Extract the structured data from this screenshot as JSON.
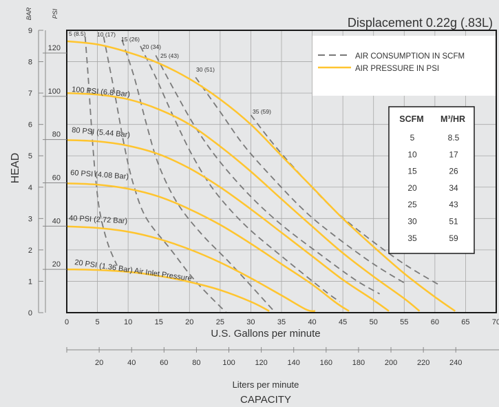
{
  "chart_data": {
    "type": "line",
    "title": "Displacement 0.22g (.83L)",
    "xlabel": "U.S. Gallons per minute",
    "xlabel2": "Liters per minute",
    "xlabel3": "CAPACITY",
    "ylabel": "HEAD",
    "unit_bar": "BAR",
    "unit_psi": "PSI",
    "xlim": [
      0,
      70
    ],
    "ylim_bar": [
      0,
      9
    ],
    "x_ticks": [
      "0",
      "5",
      "10",
      "15",
      "20",
      "25",
      "30",
      "35",
      "40",
      "45",
      "50",
      "55",
      "60",
      "65",
      "70"
    ],
    "bar_ticks": [
      "0",
      "1",
      "2",
      "3",
      "4",
      "5",
      "6",
      "7",
      "8",
      "9"
    ],
    "psi_ticks": [
      "20",
      "40",
      "60",
      "80",
      "100",
      "120"
    ],
    "lpm_ticks": [
      "20",
      "40",
      "60",
      "80",
      "100",
      "120",
      "140",
      "160",
      "180",
      "200",
      "220",
      "240"
    ],
    "legend": {
      "dashed": "AIR CONSUMPTION IN SCFM",
      "solid": "AIR PRESSURE IN PSI",
      "position": "top-right"
    },
    "pressure_series": [
      {
        "name": "20 PSI (1.36 Bar) Air Inlet Pressure",
        "points": [
          [
            0,
            1.38
          ],
          [
            5,
            1.36
          ],
          [
            10,
            1.3
          ],
          [
            15,
            1.17
          ],
          [
            20,
            0.98
          ],
          [
            25,
            0.72
          ],
          [
            30,
            0.35
          ],
          [
            33,
            0.05
          ]
        ]
      },
      {
        "name": "40 PSI (2.72 Bar)",
        "points": [
          [
            0,
            2.75
          ],
          [
            5,
            2.7
          ],
          [
            10,
            2.58
          ],
          [
            15,
            2.35
          ],
          [
            20,
            2.02
          ],
          [
            25,
            1.6
          ],
          [
            30,
            1.1
          ],
          [
            35,
            0.55
          ],
          [
            39,
            0.1
          ],
          [
            40.5,
            0.05
          ]
        ]
      },
      {
        "name": "60 PSI (4.08 Bar)",
        "points": [
          [
            0,
            4.12
          ],
          [
            5,
            4.08
          ],
          [
            10,
            3.95
          ],
          [
            15,
            3.7
          ],
          [
            20,
            3.3
          ],
          [
            25,
            2.8
          ],
          [
            30,
            2.2
          ],
          [
            35,
            1.55
          ],
          [
            40,
            0.9
          ],
          [
            44,
            0.3
          ],
          [
            46,
            0.05
          ]
        ]
      },
      {
        "name": "80 PSI (5.44 Bar)",
        "points": [
          [
            0,
            5.5
          ],
          [
            5,
            5.46
          ],
          [
            10,
            5.32
          ],
          [
            15,
            5.05
          ],
          [
            20,
            4.6
          ],
          [
            25,
            4.0
          ],
          [
            30,
            3.3
          ],
          [
            35,
            2.55
          ],
          [
            40,
            1.8
          ],
          [
            45,
            1.05
          ],
          [
            50,
            0.4
          ],
          [
            52.5,
            0.05
          ]
        ]
      },
      {
        "name": "100 PSI (6.8 Bar)",
        "points": [
          [
            0,
            7.0
          ],
          [
            5,
            6.95
          ],
          [
            10,
            6.8
          ],
          [
            15,
            6.48
          ],
          [
            20,
            6.0
          ],
          [
            25,
            5.3
          ],
          [
            30,
            4.5
          ],
          [
            35,
            3.62
          ],
          [
            40,
            2.75
          ],
          [
            45,
            1.9
          ],
          [
            50,
            1.15
          ],
          [
            55,
            0.45
          ],
          [
            57.5,
            0.05
          ]
        ]
      },
      {
        "name": "120 PSI",
        "points": [
          [
            0,
            8.65
          ],
          [
            5,
            8.55
          ],
          [
            10,
            8.3
          ],
          [
            15,
            7.95
          ],
          [
            20,
            7.45
          ],
          [
            25,
            6.8
          ],
          [
            30,
            6.0
          ],
          [
            35,
            5.0
          ],
          [
            40,
            4.0
          ],
          [
            45,
            3.0
          ],
          [
            50,
            2.1
          ],
          [
            55,
            1.25
          ],
          [
            60,
            0.5
          ],
          [
            63.3,
            0.05
          ]
        ]
      }
    ],
    "scfm_series": [
      {
        "name": "5 (8.5)",
        "points": [
          [
            3,
            8.8
          ],
          [
            3.5,
            7.5
          ],
          [
            4,
            6
          ],
          [
            4.6,
            4.5
          ],
          [
            5.4,
            3.2
          ],
          [
            6.7,
            2.2
          ],
          [
            8.2,
            1.5
          ]
        ]
      },
      {
        "name": "10 (17)",
        "points": [
          [
            6,
            8.8
          ],
          [
            7.8,
            7
          ],
          [
            9.5,
            5.2
          ],
          [
            11,
            4.0
          ],
          [
            13,
            3.0
          ],
          [
            17,
            2.0
          ],
          [
            21,
            1.0
          ],
          [
            26,
            0
          ]
        ]
      },
      {
        "name": "15 (26)",
        "points": [
          [
            9,
            8.7
          ],
          [
            11,
            7.5
          ],
          [
            13,
            6.0
          ],
          [
            15,
            4.7
          ],
          [
            18,
            3.5
          ],
          [
            22,
            2.5
          ],
          [
            27,
            1.5
          ],
          [
            34,
            0
          ]
        ]
      },
      {
        "name": "20 (34)",
        "points": [
          [
            12,
            8.5
          ],
          [
            14.5,
            7.5
          ],
          [
            17.5,
            6.2
          ],
          [
            20.5,
            5.0
          ],
          [
            24,
            3.9
          ],
          [
            29,
            2.8
          ],
          [
            35,
            1.8
          ],
          [
            42,
            0.7
          ],
          [
            44.5,
            0.35
          ]
        ]
      },
      {
        "name": "25 (43)",
        "points": [
          [
            14.5,
            8.2
          ],
          [
            17.5,
            7.1
          ],
          [
            21,
            5.9
          ],
          [
            25,
            4.8
          ],
          [
            30,
            3.7
          ],
          [
            35,
            2.8
          ],
          [
            41,
            1.9
          ],
          [
            47,
            1.05
          ],
          [
            51,
            0.6
          ]
        ]
      },
      {
        "name": "30 (51)",
        "points": [
          [
            21,
            7.5
          ],
          [
            25,
            6.4
          ],
          [
            29,
            5.3
          ],
          [
            34,
            4.2
          ],
          [
            39,
            3.2
          ],
          [
            44,
            2.4
          ],
          [
            50,
            1.55
          ],
          [
            55,
            0.95
          ]
        ]
      },
      {
        "name": "35 (59)",
        "points": [
          [
            30,
            6.3
          ],
          [
            34,
            5.3
          ],
          [
            39,
            4.2
          ],
          [
            44,
            3.2
          ],
          [
            49,
            2.4
          ],
          [
            55,
            1.55
          ],
          [
            61,
            0.85
          ]
        ]
      }
    ],
    "scfm_table": {
      "headers": [
        "SCFM",
        "M³/HR"
      ],
      "rows": [
        [
          "5",
          "8.5"
        ],
        [
          "10",
          "17"
        ],
        [
          "15",
          "26"
        ],
        [
          "20",
          "34"
        ],
        [
          "25",
          "43"
        ],
        [
          "30",
          "51"
        ],
        [
          "35",
          "59"
        ]
      ]
    }
  }
}
